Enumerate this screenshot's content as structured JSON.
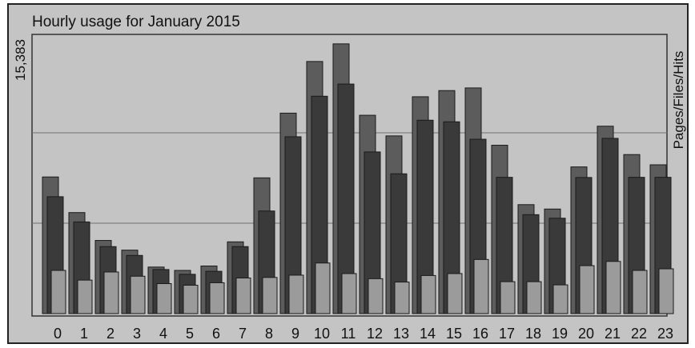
{
  "chart_data": {
    "type": "bar",
    "title": "Hourly usage for January 2015",
    "ymax_label": "15,383",
    "right_axis_label": "Pages/Files/Hits",
    "ymax": 15383,
    "grid": true,
    "categories": [
      "0",
      "1",
      "2",
      "3",
      "4",
      "5",
      "6",
      "7",
      "8",
      "9",
      "10",
      "11",
      "12",
      "13",
      "14",
      "15",
      "16",
      "17",
      "18",
      "19",
      "20",
      "21",
      "22",
      "23"
    ],
    "series": [
      {
        "name": "Hits",
        "color": "#5c5c5c",
        "values": [
          7750,
          5730,
          4150,
          3600,
          2640,
          2450,
          2700,
          4070,
          7700,
          11370,
          14300,
          15300,
          11250,
          10080,
          12300,
          12650,
          12800,
          9550,
          6180,
          5930,
          8320,
          10630,
          9020,
          8440
        ]
      },
      {
        "name": "Files",
        "color": "#3a3a3a",
        "values": [
          6630,
          5200,
          3800,
          3300,
          2500,
          2230,
          2400,
          3800,
          5820,
          10030,
          12330,
          13020,
          9170,
          7930,
          10970,
          10880,
          9890,
          7730,
          5610,
          5410,
          7720,
          9940,
          7730,
          7730
        ]
      },
      {
        "name": "Pages",
        "color": "#9b9b9b",
        "values": [
          2450,
          1900,
          2360,
          2120,
          1700,
          1610,
          1750,
          2020,
          2050,
          2180,
          2870,
          2270,
          1980,
          1790,
          2160,
          2270,
          3070,
          1810,
          1810,
          1630,
          2720,
          2960,
          2450,
          2540
        ]
      }
    ]
  }
}
